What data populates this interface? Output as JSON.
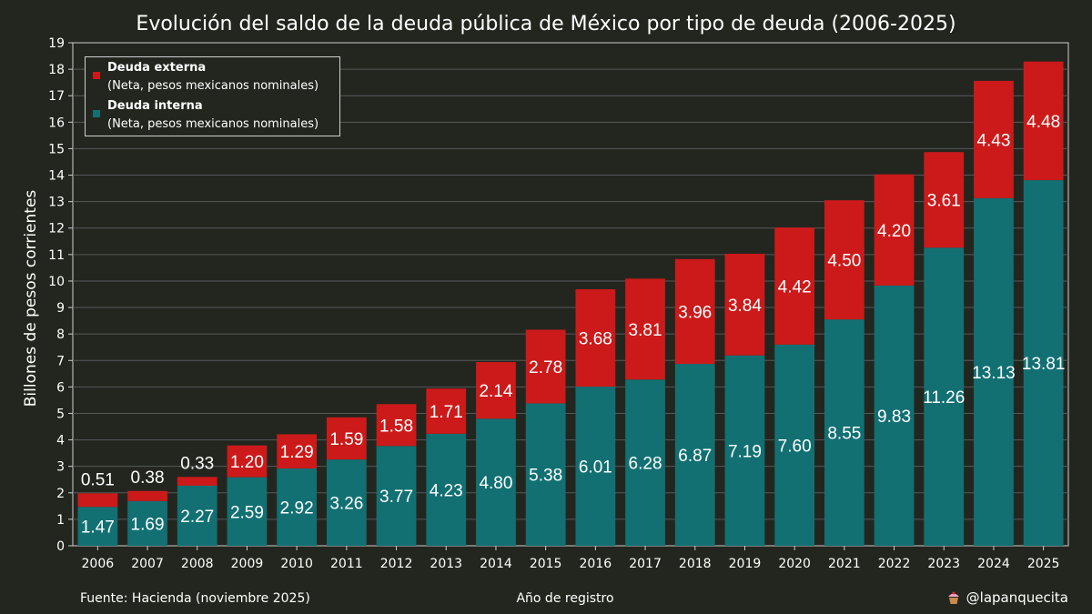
{
  "chart_data": {
    "type": "bar",
    "stacked": true,
    "title": "Evolución del saldo de la deuda pública de México por tipo de deuda (2006-2025)",
    "xlabel": "Año de registro",
    "ylabel": "Billones de pesos corrientes",
    "ylim": [
      0,
      19
    ],
    "yticks": [
      0,
      1,
      2,
      3,
      4,
      5,
      6,
      7,
      8,
      9,
      10,
      11,
      12,
      13,
      14,
      15,
      16,
      17,
      18,
      19
    ],
    "grid": "horizontal",
    "legend_position": "top-left",
    "categories": [
      "2006",
      "2007",
      "2008",
      "2009",
      "2010",
      "2011",
      "2012",
      "2013",
      "2014",
      "2015",
      "2016",
      "2017",
      "2018",
      "2019",
      "2020",
      "2021",
      "2022",
      "2023",
      "2024",
      "2025"
    ],
    "series": [
      {
        "name": "Deuda interna",
        "subtitle": "(Neta, pesos mexicanos nominales)",
        "color": "#127073",
        "values": [
          1.47,
          1.69,
          2.27,
          2.59,
          2.92,
          3.26,
          3.77,
          4.23,
          4.8,
          5.38,
          6.01,
          6.28,
          6.87,
          7.19,
          7.6,
          8.55,
          9.83,
          11.26,
          13.13,
          13.81
        ],
        "labels": [
          "1.47",
          "1.69",
          "2.27",
          "2.59",
          "2.92",
          "3.26",
          "3.77",
          "4.23",
          "4.80",
          "5.38",
          "6.01",
          "6.28",
          "6.87",
          "7.19",
          "7.60",
          "8.55",
          "9.83",
          "11.26",
          "13.13",
          "13.81"
        ]
      },
      {
        "name": "Deuda externa",
        "subtitle": "(Neta, pesos mexicanos nominales)",
        "color": "#cc1a1a",
        "values": [
          0.51,
          0.38,
          0.33,
          1.2,
          1.29,
          1.59,
          1.58,
          1.71,
          2.14,
          2.78,
          3.68,
          3.81,
          3.96,
          3.84,
          4.42,
          4.5,
          4.2,
          3.61,
          4.43,
          4.48
        ],
        "labels": [
          "0.51",
          "0.38",
          "0.33",
          "1.20",
          "1.29",
          "1.59",
          "1.58",
          "1.71",
          "2.14",
          "2.78",
          "3.68",
          "3.81",
          "3.96",
          "3.84",
          "4.42",
          "4.50",
          "4.20",
          "3.61",
          "4.43",
          "4.48"
        ]
      }
    ]
  },
  "footer": {
    "source": "Fuente: Hacienda (noviembre 2025)",
    "credit": "@lapanquecita",
    "credit_icon": "cupcake-icon"
  },
  "colors": {
    "background": "#23261f",
    "grid": "#55585a",
    "text": "#ffffff"
  }
}
